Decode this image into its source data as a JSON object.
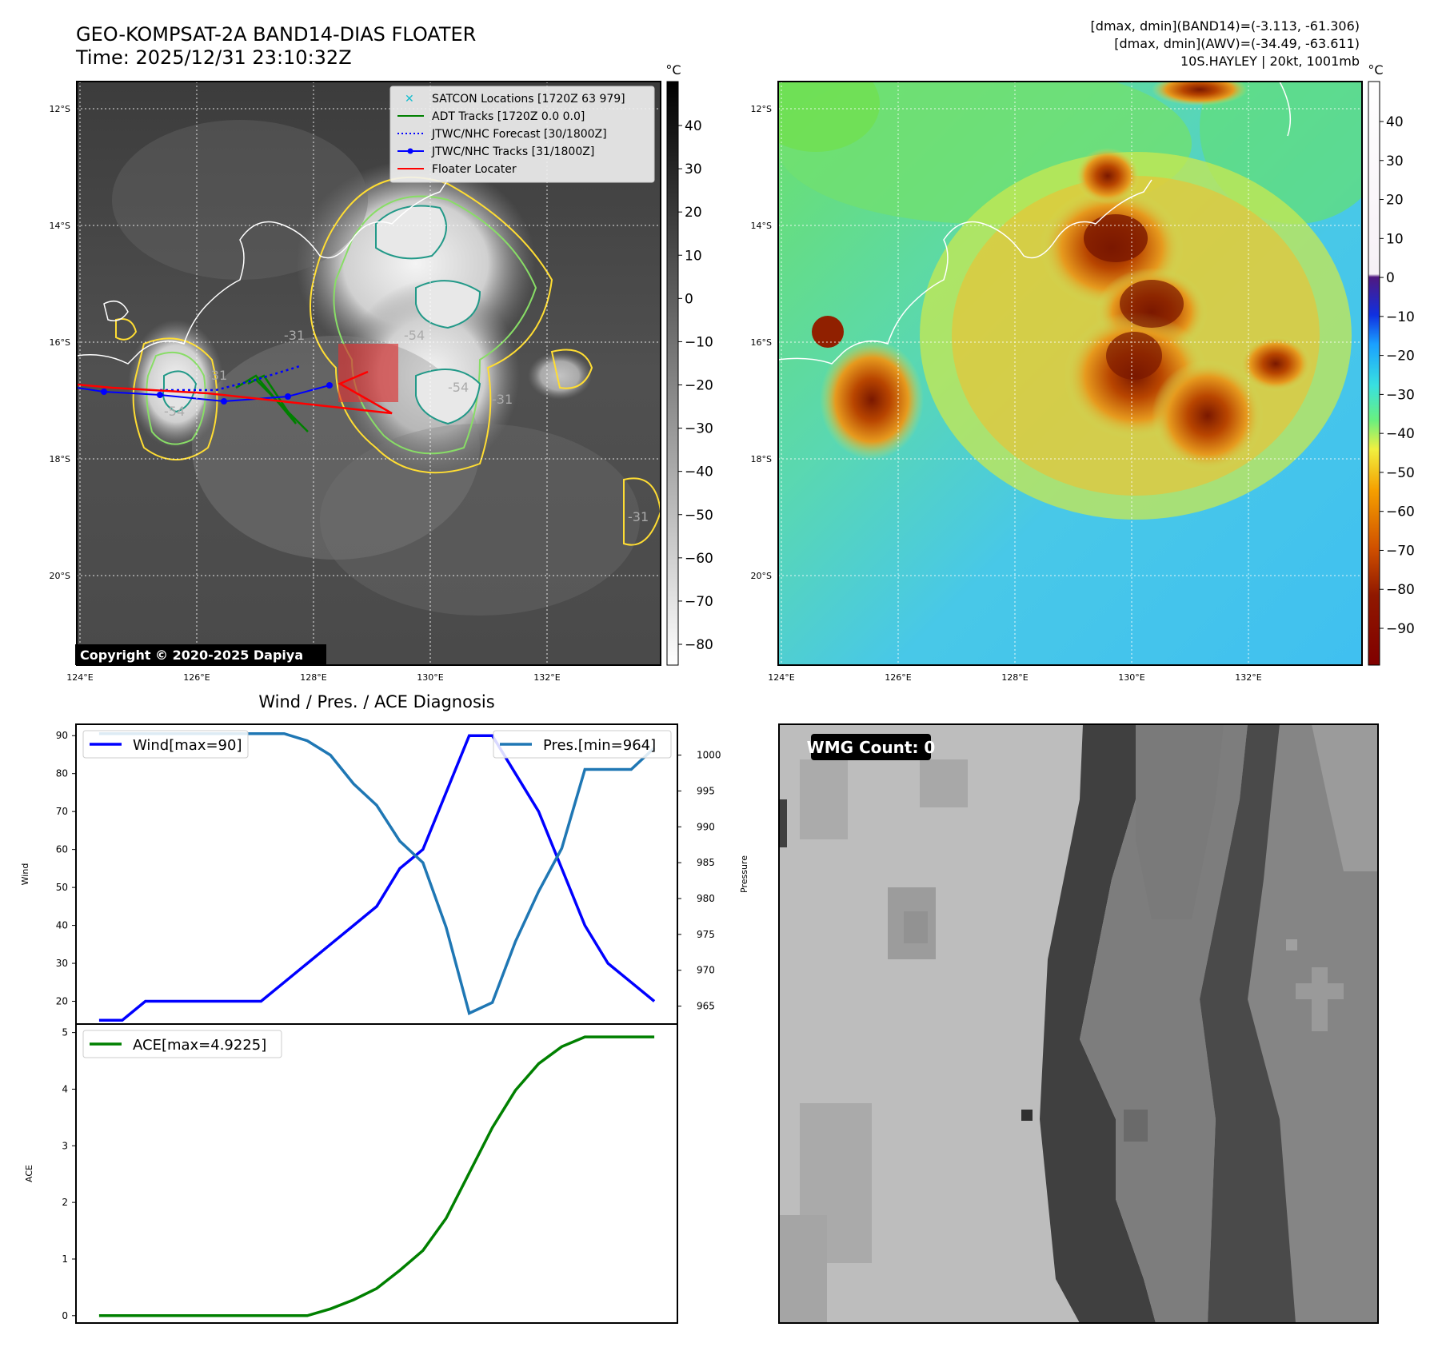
{
  "header": {
    "title_line1": "GEO-KOMPSAT-2A BAND14-DIAS FLOATER",
    "title_line2": "Time: 2025/12/31 23:10:32Z",
    "info_line1": "[dmax, dmin](BAND14)=(-3.113, -61.306)",
    "info_line2": "[dmax, dmin](AWV)=(-34.49, -63.611)",
    "info_line3": "10S.HAYLEY | 20kt, 1001mb"
  },
  "maps": {
    "lat_labels": [
      "12°S",
      "14°S",
      "16°S",
      "18°S",
      "20°S"
    ],
    "lon_labels": [
      "124°E",
      "126°E",
      "128°E",
      "130°E",
      "132°E"
    ],
    "colorbar_unit": "°C",
    "copyright": "Copyright © 2020-2025 Dapiya",
    "legend": [
      {
        "label": "SATCON Locations [1720Z 63 979]",
        "color": "#17becf",
        "marker": "x"
      },
      {
        "label": "ADT Tracks [1720Z 0.0 0.0]",
        "color": "#008000",
        "marker": "line"
      },
      {
        "label": "JTWC/NHC Forecast [30/1800Z]",
        "color": "#0000ff",
        "marker": "dotted"
      },
      {
        "label": "JTWC/NHC Tracks [31/1800Z]",
        "color": "#0000ff",
        "marker": "dot-line"
      },
      {
        "label": "Floater Locater",
        "color": "#ff0000",
        "marker": "line"
      }
    ],
    "contour_labels": [
      "-54",
      "-54",
      "-54",
      "-31",
      "-31",
      "-31",
      "-31"
    ],
    "gray_colorbar_ticks": [
      40,
      30,
      20,
      10,
      0,
      -10,
      -20,
      -30,
      -40,
      -50,
      -60,
      -70,
      -80
    ],
    "color_colorbar_ticks": [
      40,
      30,
      20,
      10,
      0,
      -10,
      -20,
      -30,
      -40,
      -50,
      -60,
      -70,
      -80,
      -90
    ]
  },
  "wmg": {
    "label": "WMG Count: 0"
  },
  "chart_data": [
    {
      "type": "line",
      "title": "Wind / Pres. / ACE Diagnosis",
      "ylabel": "Wind",
      "ylabel_right": "Pressure",
      "ylim": [
        14,
        93
      ],
      "ylim_right": [
        962.5,
        1004.3
      ],
      "yticks": [
        20,
        30,
        40,
        50,
        60,
        70,
        80,
        90
      ],
      "yticks_right": [
        965,
        970,
        975,
        980,
        985,
        990,
        995,
        1000
      ],
      "x": [
        0,
        1,
        2,
        3,
        4,
        5,
        6,
        7,
        8,
        9,
        10,
        11,
        12,
        13,
        14,
        15,
        16,
        17,
        18,
        19,
        20,
        21,
        22,
        23,
        24
      ],
      "series": [
        {
          "name": "Wind[max=90]",
          "axis": "left",
          "color": "#0000ff",
          "values": [
            15,
            15,
            20,
            20,
            20,
            20,
            20,
            20,
            25,
            30,
            35,
            40,
            45,
            55,
            60,
            75,
            90,
            90,
            80,
            70,
            55,
            40,
            30,
            25,
            20
          ]
        },
        {
          "name": "Pres.[min=964]",
          "axis": "right",
          "color": "#1f77b4",
          "values": [
            1003,
            1003,
            1003,
            1003,
            1003,
            1003,
            1003,
            1003,
            1003,
            1002,
            1000,
            996,
            993,
            988,
            985,
            976,
            964,
            965.5,
            974,
            981,
            987,
            998,
            998,
            998,
            1001
          ]
        }
      ],
      "legend": [
        "upper-left",
        "upper-right"
      ]
    },
    {
      "type": "line",
      "ylabel": "ACE",
      "ylim": [
        -0.13,
        5.15
      ],
      "yticks": [
        0,
        1,
        2,
        3,
        4,
        5
      ],
      "x": [
        0,
        1,
        2,
        3,
        4,
        5,
        6,
        7,
        8,
        9,
        10,
        11,
        12,
        13,
        14,
        15,
        16,
        17,
        18,
        19,
        20,
        21,
        22,
        23,
        24
      ],
      "series": [
        {
          "name": "ACE[max=4.9225]",
          "color": "#008000",
          "values": [
            0,
            0,
            0,
            0,
            0,
            0,
            0,
            0,
            0,
            0,
            0.12,
            0.28,
            0.48,
            0.8,
            1.15,
            1.72,
            2.52,
            3.32,
            3.98,
            4.45,
            4.75,
            4.9225,
            4.9225,
            4.9225,
            4.9225
          ]
        }
      ],
      "legend": "upper-left"
    }
  ]
}
